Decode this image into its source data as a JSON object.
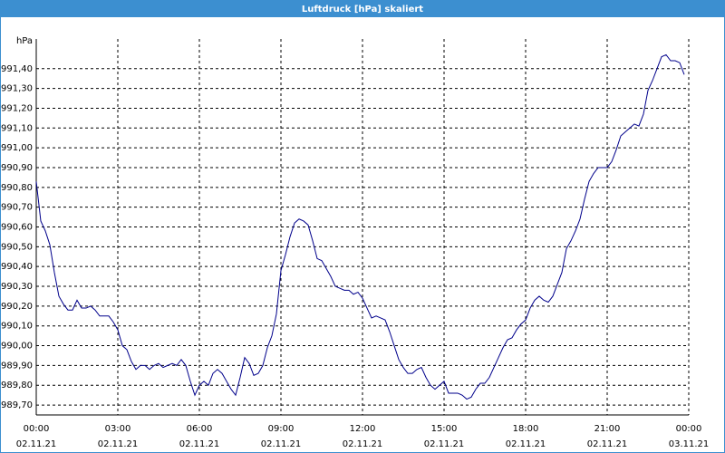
{
  "chart_data": {
    "type": "line",
    "title": "Luftdruck [hPa] skaliert",
    "y_label": "hPa",
    "x": [
      0,
      10,
      20,
      30,
      40,
      50,
      60,
      70,
      80,
      90,
      100,
      110,
      120,
      130,
      140,
      150,
      160,
      170,
      180,
      190,
      200,
      210,
      220,
      230,
      240,
      250,
      260,
      270,
      280,
      290,
      300,
      310,
      320,
      330,
      340,
      350,
      360,
      370,
      380,
      390,
      400,
      410,
      420,
      430,
      440,
      450,
      460,
      470,
      480,
      490,
      500,
      510,
      520,
      530,
      540,
      550,
      560,
      570,
      580,
      590,
      600,
      610,
      620,
      630,
      640,
      650,
      660,
      670,
      680,
      690,
      700,
      710,
      720,
      730,
      740,
      750,
      760,
      770,
      780,
      790,
      800,
      810,
      820,
      830,
      840,
      850,
      860,
      870,
      880,
      890,
      900,
      910,
      920,
      930,
      940,
      950,
      960,
      970,
      980,
      990,
      1000,
      1010,
      1020,
      1030,
      1040,
      1050,
      1060,
      1070,
      1080,
      1090,
      1100,
      1110,
      1120,
      1130,
      1140,
      1150,
      1160,
      1170,
      1180,
      1190,
      1200,
      1210,
      1220,
      1230,
      1240,
      1250,
      1260,
      1270,
      1280,
      1290,
      1300,
      1310,
      1320,
      1330,
      1340,
      1350,
      1360,
      1370,
      1380,
      1390,
      1400,
      1410,
      1420,
      1430
    ],
    "series": [
      {
        "name": "Luftdruck",
        "color": "#00008b",
        "values": [
          990.83,
          990.63,
          990.58,
          990.51,
          990.37,
          990.25,
          990.21,
          990.18,
          990.18,
          990.23,
          990.19,
          990.19,
          990.2,
          990.18,
          990.15,
          990.15,
          990.15,
          990.12,
          990.08,
          990.0,
          989.98,
          989.92,
          989.88,
          989.9,
          989.9,
          989.88,
          989.9,
          989.91,
          989.89,
          989.9,
          989.91,
          989.9,
          989.93,
          989.9,
          989.82,
          989.75,
          989.8,
          989.82,
          989.8,
          989.86,
          989.88,
          989.86,
          989.82,
          989.78,
          989.75,
          989.84,
          989.94,
          989.91,
          989.85,
          989.86,
          989.9,
          989.99,
          990.05,
          990.16,
          990.38,
          990.46,
          990.55,
          990.62,
          990.64,
          990.63,
          990.61,
          990.53,
          990.44,
          990.43,
          990.39,
          990.35,
          990.3,
          990.29,
          990.28,
          990.28,
          990.26,
          990.27,
          990.24,
          990.19,
          990.14,
          990.15,
          990.14,
          990.13,
          990.07,
          990.0,
          989.93,
          989.89,
          989.86,
          989.86,
          989.88,
          989.89,
          989.84,
          989.8,
          989.78,
          989.8,
          989.82,
          989.76,
          989.76,
          989.76,
          989.75,
          989.73,
          989.74,
          989.78,
          989.81,
          989.81,
          989.84,
          989.89,
          989.94,
          989.99,
          990.03,
          990.04,
          990.08,
          990.11,
          990.13,
          990.19,
          990.23,
          990.25,
          990.23,
          990.22,
          990.25,
          990.31,
          990.37,
          990.49,
          990.53,
          990.58,
          990.64,
          990.74,
          990.83,
          990.87,
          990.9,
          990.9,
          990.9,
          990.93,
          990.99,
          991.06,
          991.08,
          991.1,
          991.12,
          991.11,
          991.17,
          991.29,
          991.34,
          991.4,
          991.46,
          991.47,
          991.44,
          991.44,
          991.43,
          991.37
        ]
      }
    ],
    "xlim": [
      0,
      1440
    ],
    "xticks": [
      {
        "value": 0,
        "label": "00:00",
        "date": "02.11.21"
      },
      {
        "value": 180,
        "label": "03:00",
        "date": "02.11.21"
      },
      {
        "value": 360,
        "label": "06:00",
        "date": "02.11.21"
      },
      {
        "value": 540,
        "label": "09:00",
        "date": "02.11.21"
      },
      {
        "value": 720,
        "label": "12:00",
        "date": "02.11.21"
      },
      {
        "value": 900,
        "label": "15:00",
        "date": "02.11.21"
      },
      {
        "value": 1080,
        "label": "18:00",
        "date": "02.11.21"
      },
      {
        "value": 1260,
        "label": "21:00",
        "date": "02.11.21"
      },
      {
        "value": 1440,
        "label": "00:00",
        "date": "03.11.21"
      }
    ],
    "ylim": [
      989.65,
      991.55
    ],
    "yticks": [
      {
        "value": 989.7,
        "label": "989,70"
      },
      {
        "value": 989.8,
        "label": "989,80"
      },
      {
        "value": 989.9,
        "label": "989,90"
      },
      {
        "value": 990.0,
        "label": "990,00"
      },
      {
        "value": 990.1,
        "label": "990,10"
      },
      {
        "value": 990.2,
        "label": "990,20"
      },
      {
        "value": 990.3,
        "label": "990,30"
      },
      {
        "value": 990.4,
        "label": "990,40"
      },
      {
        "value": 990.5,
        "label": "990,50"
      },
      {
        "value": 990.6,
        "label": "990,60"
      },
      {
        "value": 990.7,
        "label": "990,70"
      },
      {
        "value": 990.8,
        "label": "990,80"
      },
      {
        "value": 990.9,
        "label": "990,90"
      },
      {
        "value": 991.0,
        "label": "991,00"
      },
      {
        "value": 991.1,
        "label": "991,10"
      },
      {
        "value": 991.2,
        "label": "991,20"
      },
      {
        "value": 991.3,
        "label": "991,30"
      },
      {
        "value": 991.4,
        "label": "991,40"
      }
    ],
    "grid": true
  }
}
